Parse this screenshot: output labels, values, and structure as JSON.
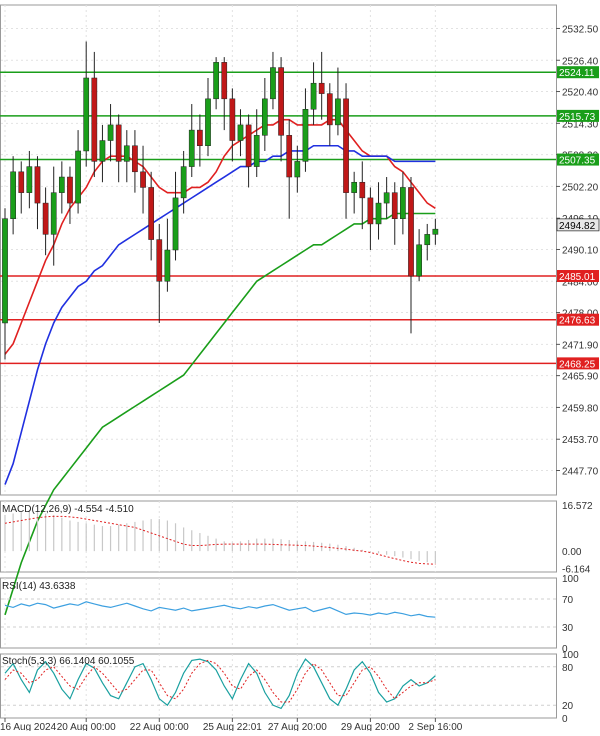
{
  "chart_data": {
    "type": "candlestick",
    "price_panel": {
      "y_ticks": [
        "2532.50",
        "2526.40",
        "2520.40",
        "2514.30",
        "2508.30",
        "2502.20",
        "2496.10",
        "2490.10",
        "2484.00",
        "2478.00",
        "2471.90",
        "2465.90",
        "2459.80",
        "2453.70",
        "2447.70"
      ],
      "ylim": [
        2443,
        2537
      ],
      "levels": [
        {
          "value": 2524.11,
          "label": "2524.11",
          "color": "#1a9e1a"
        },
        {
          "value": 2515.73,
          "label": "2515.73",
          "color": "#1a9e1a"
        },
        {
          "value": 2507.35,
          "label": "2507.35",
          "color": "#1a9e1a"
        },
        {
          "value": 2485.01,
          "label": "2485.01",
          "color": "#e02020"
        },
        {
          "value": 2476.63,
          "label": "2476.63",
          "color": "#e02020"
        },
        {
          "value": 2468.25,
          "label": "2468.25",
          "color": "#e02020"
        }
      ],
      "current_price": {
        "value": 2494.82,
        "label": "2494.82"
      },
      "candles": [
        [
          2476,
          2496,
          2469,
          2498
        ],
        [
          2496,
          2505,
          2493,
          2508
        ],
        [
          2505,
          2501,
          2497,
          2507
        ],
        [
          2501,
          2506,
          2498,
          2509
        ],
        [
          2506,
          2499,
          2494,
          2508
        ],
        [
          2499,
          2493,
          2489,
          2502
        ],
        [
          2493,
          2501,
          2487,
          2506
        ],
        [
          2501,
          2504,
          2497,
          2507
        ],
        [
          2504,
          2499,
          2495,
          2506
        ],
        [
          2499,
          2509,
          2497,
          2513
        ],
        [
          2509,
          2523,
          2506,
          2530
        ],
        [
          2523,
          2507,
          2504,
          2528
        ],
        [
          2507,
          2511,
          2503,
          2514
        ],
        [
          2511,
          2514,
          2507,
          2518
        ],
        [
          2514,
          2507,
          2503,
          2516
        ],
        [
          2507,
          2510,
          2503,
          2513
        ],
        [
          2510,
          2505,
          2501,
          2513
        ],
        [
          2505,
          2502,
          2497,
          2510
        ],
        [
          2502,
          2492,
          2488,
          2505
        ],
        [
          2492,
          2484,
          2476,
          2495
        ],
        [
          2484,
          2490,
          2482,
          2496
        ],
        [
          2490,
          2500,
          2488,
          2505
        ],
        [
          2500,
          2506,
          2497,
          2509
        ],
        [
          2506,
          2513,
          2504,
          2518
        ],
        [
          2513,
          2510,
          2506,
          2516
        ],
        [
          2510,
          2519,
          2508,
          2523
        ],
        [
          2519,
          2526,
          2517,
          2527
        ],
        [
          2526,
          2519,
          2513,
          2527
        ],
        [
          2519,
          2511,
          2507,
          2521
        ],
        [
          2511,
          2514,
          2508,
          2517
        ],
        [
          2514,
          2506,
          2502,
          2516
        ],
        [
          2506,
          2512,
          2504,
          2517
        ],
        [
          2512,
          2519,
          2509,
          2523
        ],
        [
          2519,
          2525,
          2517,
          2528
        ],
        [
          2525,
          2512,
          2507,
          2527
        ],
        [
          2512,
          2504,
          2496,
          2515
        ],
        [
          2504,
          2507,
          2501,
          2510
        ],
        [
          2507,
          2517,
          2505,
          2521
        ],
        [
          2517,
          2522,
          2514,
          2526
        ],
        [
          2522,
          2520,
          2515,
          2528
        ],
        [
          2520,
          2514,
          2510,
          2522
        ],
        [
          2514,
          2519,
          2512,
          2525
        ],
        [
          2519,
          2501,
          2496,
          2522
        ],
        [
          2501,
          2503,
          2497,
          2505
        ],
        [
          2503,
          2500,
          2494,
          2507
        ],
        [
          2500,
          2495,
          2490,
          2502
        ],
        [
          2495,
          2499,
          2492,
          2503
        ],
        [
          2499,
          2501,
          2496,
          2504
        ],
        [
          2501,
          2496,
          2491,
          2503
        ],
        [
          2496,
          2502,
          2493,
          2505
        ],
        [
          2502,
          2485,
          2474,
          2504
        ],
        [
          2485,
          2491,
          2484,
          2494
        ],
        [
          2491,
          2493,
          2488,
          2495
        ],
        [
          2493,
          2494,
          2491,
          2496
        ]
      ],
      "moving_averages": [
        {
          "color": "#e02020",
          "values": [
            2470,
            2472,
            2476,
            2480,
            2484,
            2488,
            2491,
            2495,
            2498,
            2500,
            2502,
            2505,
            2507,
            2508,
            2508,
            2508,
            2507,
            2506,
            2504,
            2502,
            2501,
            2501,
            2501,
            2502,
            2502,
            2503,
            2505,
            2508,
            2510,
            2511,
            2512,
            2513,
            2514,
            2514,
            2515,
            2515,
            2514,
            2514,
            2514,
            2514,
            2515,
            2515,
            2513,
            2511,
            2509,
            2508,
            2508,
            2508,
            2506,
            2505,
            2503,
            2501,
            2499,
            2498
          ]
        },
        {
          "color": "#2030e0",
          "values": [
            2445,
            2449,
            2455,
            2461,
            2467,
            2472,
            2476,
            2479,
            2481,
            2483,
            2484,
            2486,
            2487,
            2489,
            2491,
            2492,
            2493,
            2494,
            2495,
            2496,
            2497,
            2498,
            2499,
            2500,
            2501,
            2502,
            2503,
            2504,
            2505,
            2506,
            2506,
            2507,
            2507,
            2508,
            2508,
            2509,
            2509,
            2509,
            2510,
            2510,
            2510,
            2510,
            2509,
            2509,
            2508,
            2508,
            2508,
            2508,
            2507,
            2507,
            2507,
            2507,
            2507,
            2507
          ]
        },
        {
          "color": "#1a9e1a",
          "values": [
            2420,
            2425,
            2430,
            2434,
            2438,
            2441,
            2444,
            2446,
            2448,
            2450,
            2452,
            2454,
            2456,
            2457,
            2458,
            2459,
            2460,
            2461,
            2462,
            2463,
            2464,
            2465,
            2466,
            2468,
            2470,
            2472,
            2474,
            2476,
            2478,
            2480,
            2482,
            2484,
            2485,
            2486,
            2487,
            2488,
            2489,
            2490,
            2491,
            2491,
            2492,
            2493,
            2494,
            2495,
            2495,
            2496,
            2496,
            2496,
            2497,
            2497,
            2497,
            2497,
            2497,
            2497
          ]
        }
      ]
    },
    "macd_panel": {
      "label": "MACD(12,26,9) -4.554 -4.510",
      "y_ticks": [
        "16.572",
        "0.00",
        "-6.164"
      ],
      "ylim": [
        -7.5,
        18
      ],
      "histogram": [
        13.0,
        13.5,
        14.0,
        14.5,
        14.0,
        13.5,
        13.0,
        12.0,
        11.0,
        10.5,
        10.0,
        9.5,
        9.0,
        9.0,
        9.5,
        10.0,
        10.5,
        11.0,
        11.5,
        11.5,
        11.0,
        10.0,
        8.5,
        7.5,
        6.5,
        5.5,
        4.5,
        3.5,
        3.0,
        3.5,
        4.0,
        4.5,
        4.5,
        4.5,
        4.3,
        4.0,
        3.8,
        3.5,
        3.3,
        3.0,
        2.7,
        2.3,
        1.8,
        1.2,
        0.5,
        -0.2,
        -0.8,
        -1.3,
        -1.8,
        -2.3,
        -2.9,
        -3.5,
        -4.0,
        -4.5
      ],
      "signal": [
        10.0,
        10.5,
        11.0,
        11.5,
        12.0,
        12.3,
        12.5,
        12.5,
        12.3,
        12.0,
        11.5,
        11.0,
        10.5,
        10.0,
        9.5,
        9.0,
        8.5,
        7.5,
        6.5,
        5.5,
        4.5,
        3.5,
        2.5,
        2.0,
        2.0,
        2.2,
        2.4,
        2.5,
        2.5,
        2.5,
        2.5,
        2.5,
        2.5,
        2.4,
        2.3,
        2.2,
        2.1,
        2.0,
        1.8,
        1.6,
        1.3,
        1.0,
        0.7,
        0.3,
        0.0,
        -0.5,
        -1.2,
        -2.0,
        -2.7,
        -3.4,
        -4.0,
        -4.4,
        -4.6,
        -4.7
      ],
      "colors": {
        "histogram": "#c8c8c8",
        "signal": "#e02020"
      }
    },
    "rsi_panel": {
      "label": "RSI(14) 43.6338",
      "y_ticks": [
        "100",
        "70",
        "30",
        "0"
      ],
      "ylim": [
        0,
        100
      ],
      "values": [
        61,
        58,
        63,
        60,
        64,
        62,
        57,
        60,
        63,
        61,
        66,
        63,
        60,
        58,
        61,
        64,
        60,
        56,
        53,
        58,
        56,
        54,
        57,
        53,
        55,
        57,
        59,
        61,
        58,
        56,
        59,
        57,
        60,
        62,
        58,
        54,
        56,
        58,
        52,
        55,
        58,
        53,
        48,
        50,
        49,
        47,
        50,
        48,
        51,
        49,
        46,
        48,
        45,
        44
      ],
      "color": "#3da0e0"
    },
    "stoch_panel": {
      "label": "Stoch(5,3,3) 66.1404 60.1055",
      "y_ticks": [
        "100",
        "80",
        "20",
        "0"
      ],
      "ylim": [
        0,
        100
      ],
      "k": [
        70,
        85,
        60,
        40,
        75,
        88,
        70,
        45,
        30,
        60,
        85,
        78,
        55,
        35,
        30,
        55,
        80,
        85,
        60,
        30,
        20,
        40,
        70,
        90,
        92,
        88,
        75,
        50,
        30,
        60,
        85,
        70,
        40,
        20,
        15,
        35,
        70,
        92,
        80,
        55,
        30,
        20,
        45,
        75,
        88,
        70,
        40,
        25,
        30,
        50,
        60,
        50,
        55,
        66
      ],
      "d": [
        60,
        75,
        70,
        55,
        60,
        75,
        80,
        65,
        50,
        45,
        65,
        80,
        70,
        55,
        40,
        45,
        60,
        75,
        75,
        55,
        35,
        30,
        45,
        70,
        85,
        90,
        85,
        70,
        50,
        45,
        65,
        75,
        60,
        40,
        25,
        25,
        45,
        70,
        85,
        75,
        55,
        35,
        35,
        55,
        75,
        80,
        65,
        45,
        30,
        40,
        50,
        55,
        55,
        60
      ],
      "colors": {
        "k": "#1aa0a0",
        "d": "#e02020"
      }
    },
    "x_ticks": [
      {
        "label": "16 Aug 2024",
        "idx": 0
      },
      {
        "label": "20 Aug 00:00",
        "idx": 10
      },
      {
        "label": "22 Aug 00:00",
        "idx": 19
      },
      {
        "label": "25 Aug 22:01",
        "idx": 28
      },
      {
        "label": "27 Aug 20:00",
        "idx": 36
      },
      {
        "label": "29 Aug 20:00",
        "idx": 45
      },
      {
        "label": "2 Sep 16:00",
        "idx": 53
      }
    ],
    "colors": {
      "bull": "#1a9e1a",
      "bear": "#c01818",
      "grid": "#e2e2e2",
      "axis": "#333333",
      "current_price_bg": "#e8e8e8"
    }
  }
}
